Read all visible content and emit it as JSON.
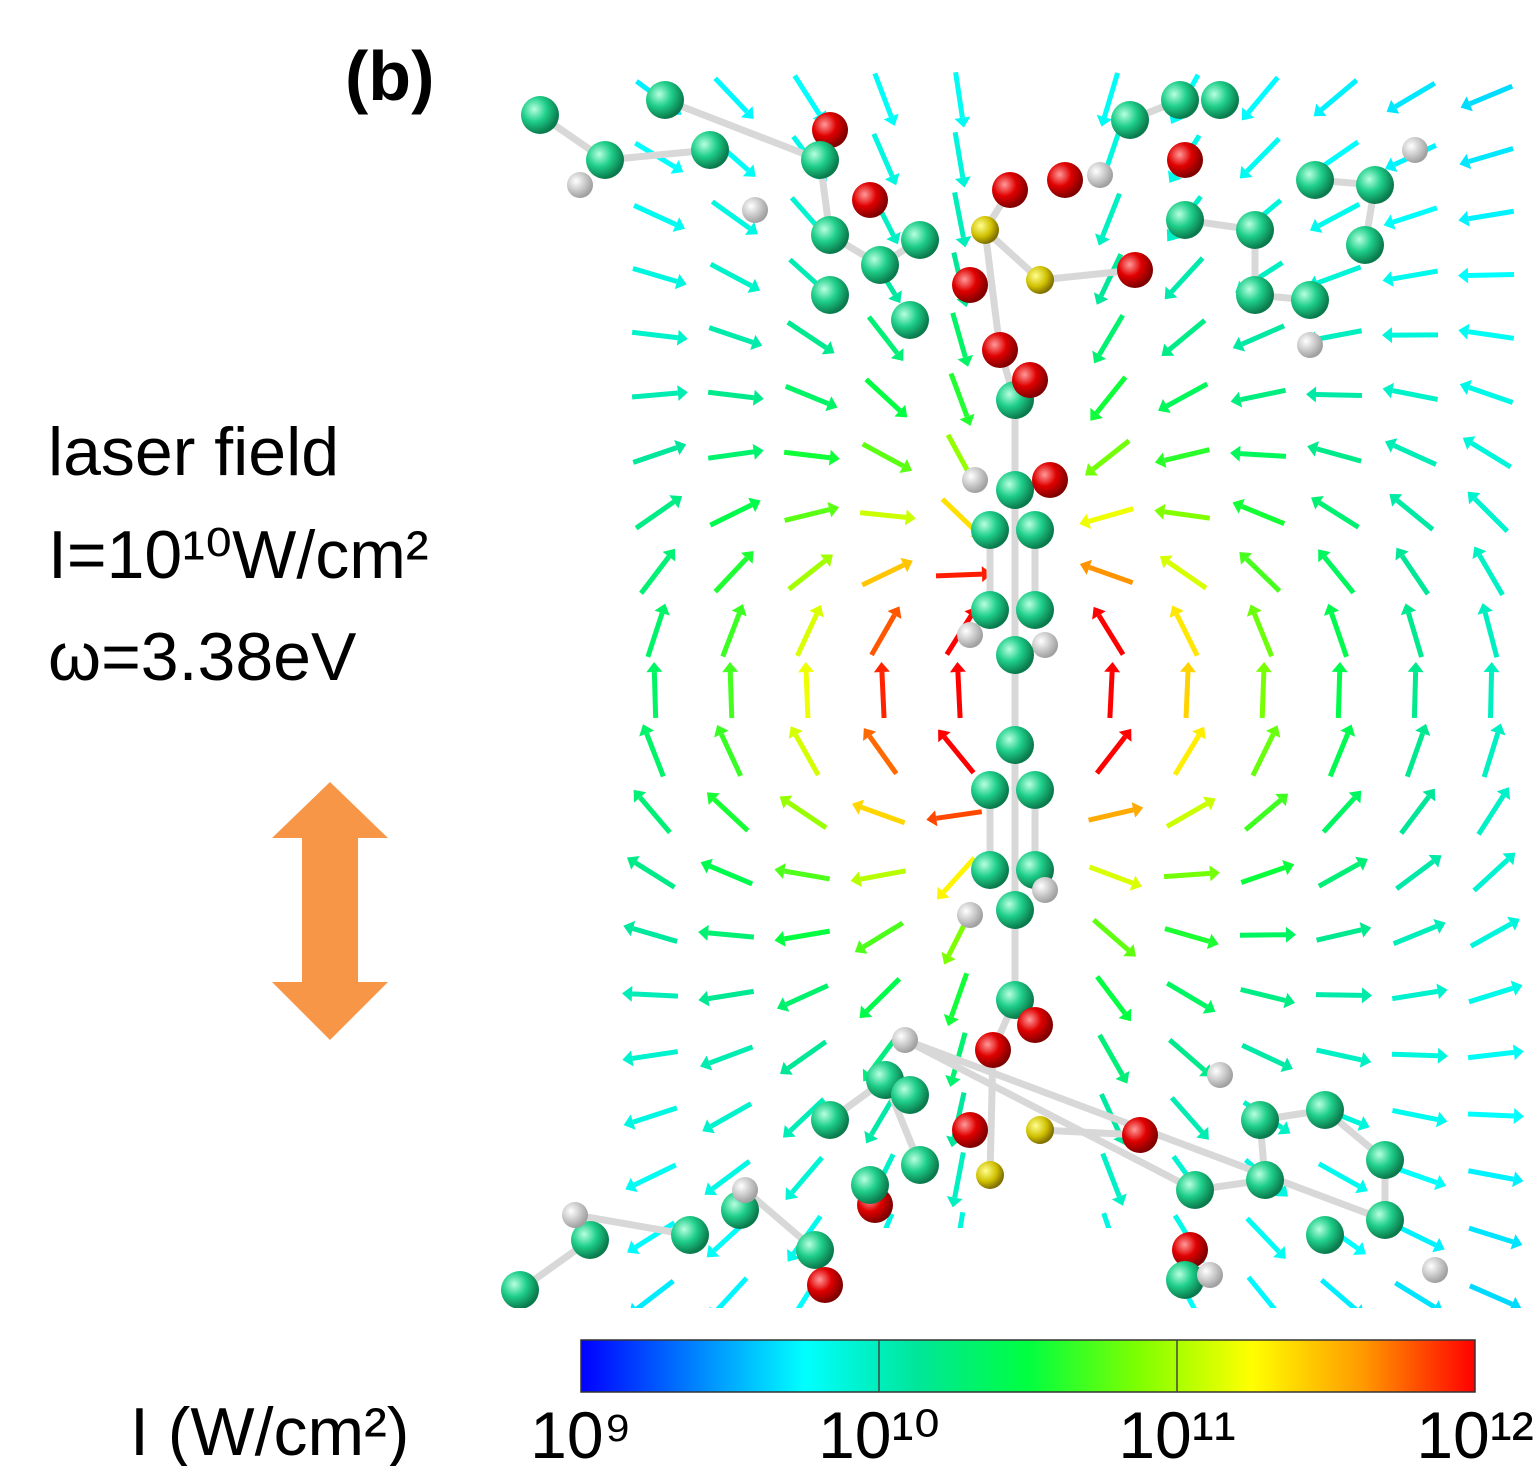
{
  "figure": {
    "panel_label": "(b)",
    "laser": {
      "title": "laser field",
      "intensity": "I=10¹⁰W/cm²",
      "frequency": "ω=3.38eV"
    },
    "colorbar": {
      "label": "I (W/cm²)",
      "scale": "log",
      "lim": [
        1000000000,
        1000000000000
      ],
      "ticks": [
        {
          "value": 1000000000,
          "label": "10⁹"
        },
        {
          "value": 10000000000,
          "label": "10¹⁰"
        },
        {
          "value": 100000000000,
          "label": "10¹¹"
        },
        {
          "value": 1000000000000,
          "label": "10¹²"
        }
      ],
      "colormap": [
        "#0000ff",
        "#0080ff",
        "#00ffff",
        "#00e69a",
        "#00ff40",
        "#80ff00",
        "#ffff00",
        "#ff9900",
        "#ff0000"
      ]
    }
  }
}
